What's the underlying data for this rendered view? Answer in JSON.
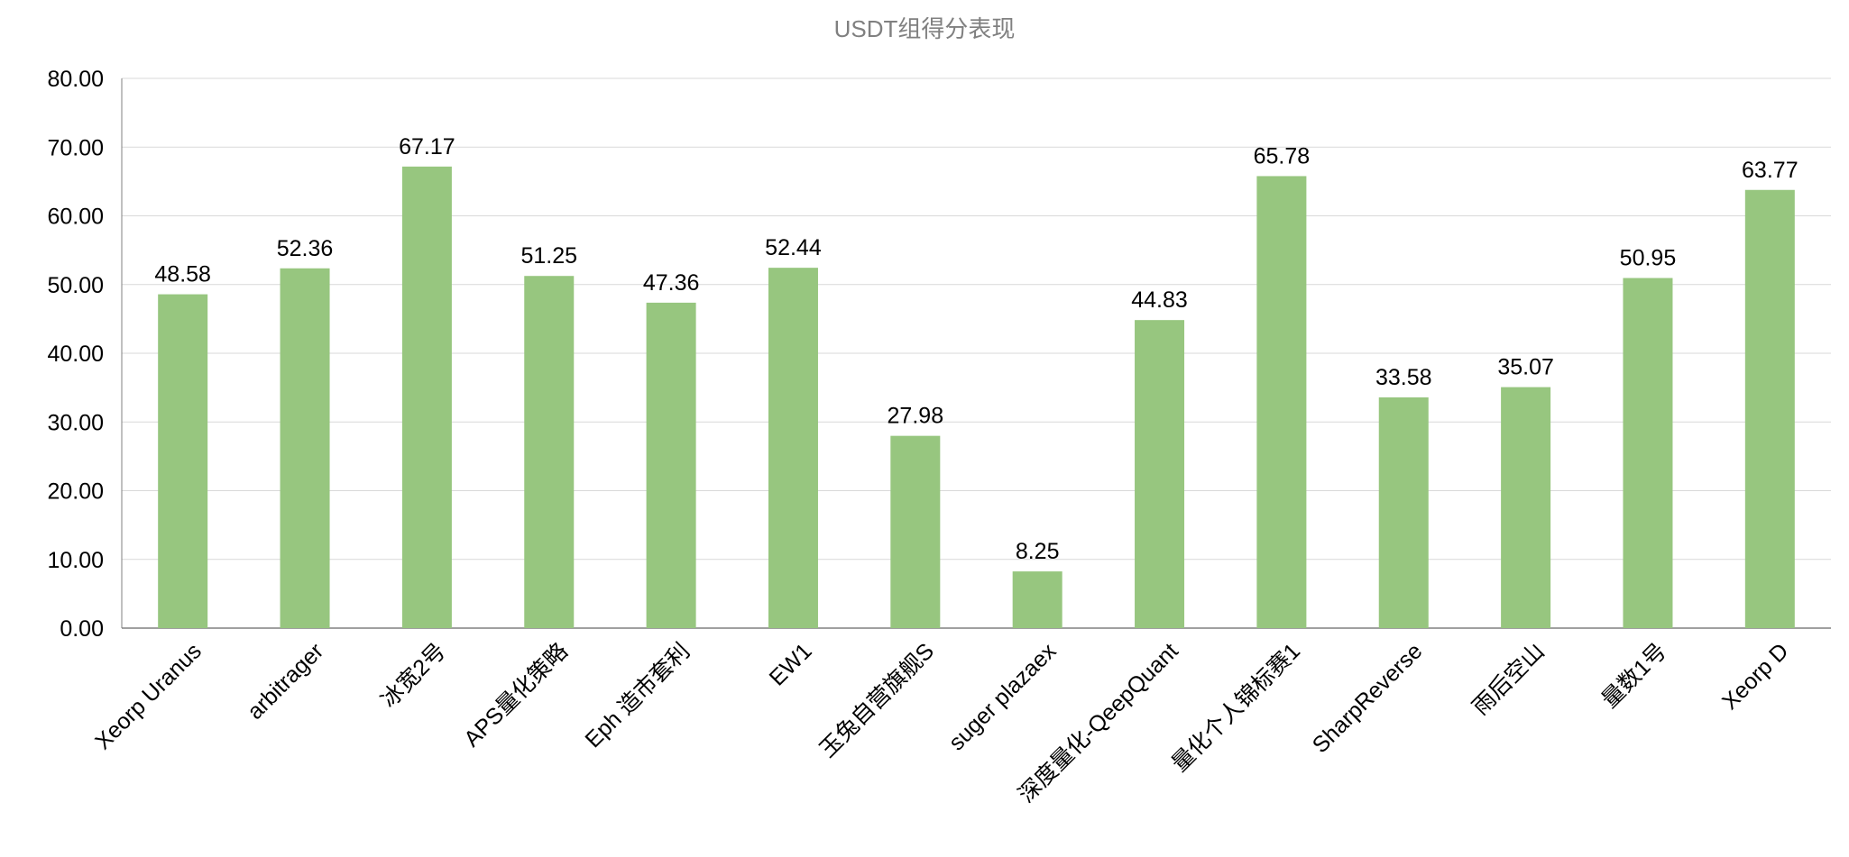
{
  "chart_data": {
    "type": "bar",
    "title": "USDT组得分表现",
    "categories": [
      "Xeorp Uranus",
      "arbitrager",
      "冰宽2号",
      "APS量化策略",
      "Eph 造市套利",
      "EW1",
      "玉兔自营旗舰S",
      "suger plazaex",
      "深度量化-QeepQuant",
      "量化个人锦标赛1",
      "SharpReverse",
      "雨后空山",
      "量数1号",
      "Xeorp D"
    ],
    "values": [
      48.58,
      52.36,
      67.17,
      51.25,
      47.36,
      52.44,
      27.98,
      8.25,
      44.83,
      65.78,
      33.58,
      35.07,
      50.95,
      63.77
    ],
    "value_labels": [
      "48.58",
      "52.36",
      "67.17",
      "51.25",
      "47.36",
      "52.44",
      "27.98",
      "8.25",
      "44.83",
      "65.78",
      "33.58",
      "35.07",
      "50.95",
      "63.77"
    ],
    "y_ticks": [
      "0.00",
      "10.00",
      "20.00",
      "30.00",
      "40.00",
      "50.00",
      "60.00",
      "70.00",
      "80.00"
    ],
    "ylim": [
      0,
      80
    ],
    "xlabel": "",
    "ylabel": "",
    "grid": true,
    "legend": "none",
    "bar_color": "#97c67f"
  }
}
